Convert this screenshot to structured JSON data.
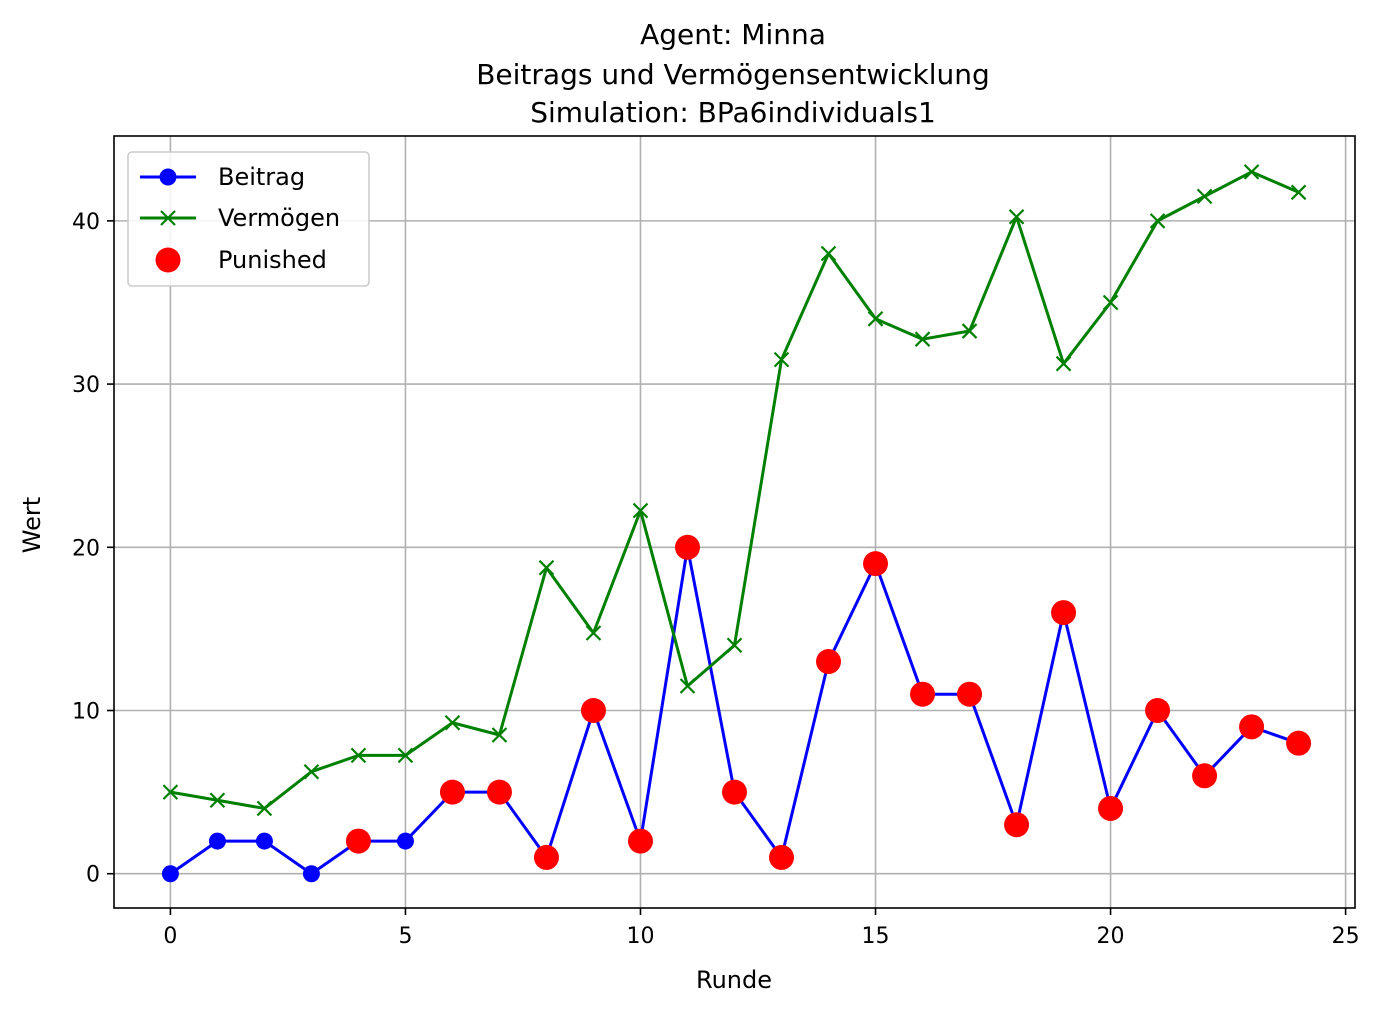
{
  "chart_data": {
    "type": "line",
    "title_lines": [
      "Agent: Minna",
      "Beitrags und Vermögensentwicklung",
      "Simulation: BPa6individuals1"
    ],
    "xlabel": "Runde",
    "ylabel": "Wert",
    "xlim": [
      -1.2,
      25.2
    ],
    "ylim": [
      -2.1,
      45.2
    ],
    "xticks": [
      0,
      5,
      10,
      15,
      20,
      25
    ],
    "yticks": [
      0,
      10,
      20,
      30,
      40
    ],
    "grid": true,
    "legend_position": "upper-left",
    "x": [
      0,
      1,
      2,
      3,
      4,
      5,
      6,
      7,
      8,
      9,
      10,
      11,
      12,
      13,
      14,
      15,
      16,
      17,
      18,
      19,
      20,
      21,
      22,
      23,
      24
    ],
    "series": [
      {
        "name": "Beitrag",
        "marker": "circle",
        "color": "#0000ff",
        "values": [
          0,
          2,
          2,
          0,
          2,
          2,
          5,
          5,
          1,
          10,
          2,
          20,
          5,
          1,
          13,
          19,
          11,
          11,
          3,
          16,
          4,
          10,
          6,
          9,
          8
        ]
      },
      {
        "name": "Vermögen",
        "marker": "x",
        "color": "#008000",
        "values": [
          5,
          4.5,
          4,
          6.25,
          7.25,
          7.25,
          9.25,
          8.5,
          18.75,
          14.75,
          22.25,
          11.5,
          14,
          31.5,
          38,
          34,
          32.75,
          33.25,
          40.25,
          31.25,
          35,
          40,
          41.5,
          43,
          41.75
        ]
      }
    ],
    "scatter": {
      "name": "Punished",
      "color": "#ff0000",
      "x": [
        4,
        6,
        7,
        8,
        9,
        10,
        11,
        12,
        13,
        14,
        15,
        16,
        17,
        18,
        19,
        20,
        21,
        22,
        23,
        24
      ],
      "y": [
        2,
        5,
        5,
        1,
        10,
        2,
        20,
        5,
        1,
        13,
        19,
        11,
        11,
        3,
        16,
        4,
        10,
        6,
        9,
        8
      ]
    }
  }
}
